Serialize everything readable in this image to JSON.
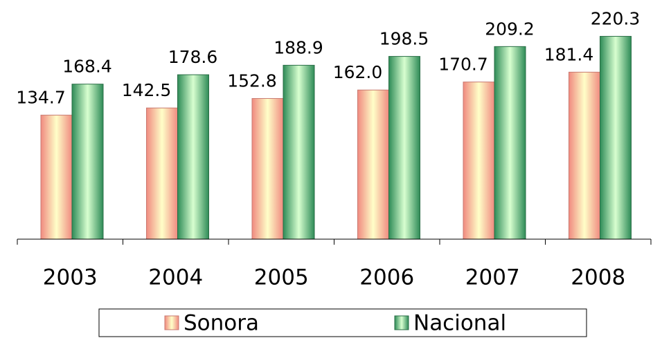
{
  "chart_data": {
    "type": "bar",
    "categories": [
      "2003",
      "2004",
      "2005",
      "2006",
      "2007",
      "2008"
    ],
    "series": [
      {
        "name": "Sonora",
        "color": "#f08a80",
        "values": [
          134.7,
          142.5,
          152.8,
          162.0,
          170.7,
          181.4
        ],
        "value_labels": [
          "134.7",
          "142.5",
          "152.8",
          "162.0",
          "170.7",
          "181.4"
        ]
      },
      {
        "name": "Nacional",
        "color": "#2e8b57",
        "values": [
          168.4,
          178.6,
          188.9,
          198.5,
          209.2,
          220.3
        ],
        "value_labels": [
          "168.4",
          "178.6",
          "188.9",
          "198.5",
          "209.2",
          "220.3"
        ]
      }
    ],
    "ylim": [
      0,
      250
    ]
  }
}
